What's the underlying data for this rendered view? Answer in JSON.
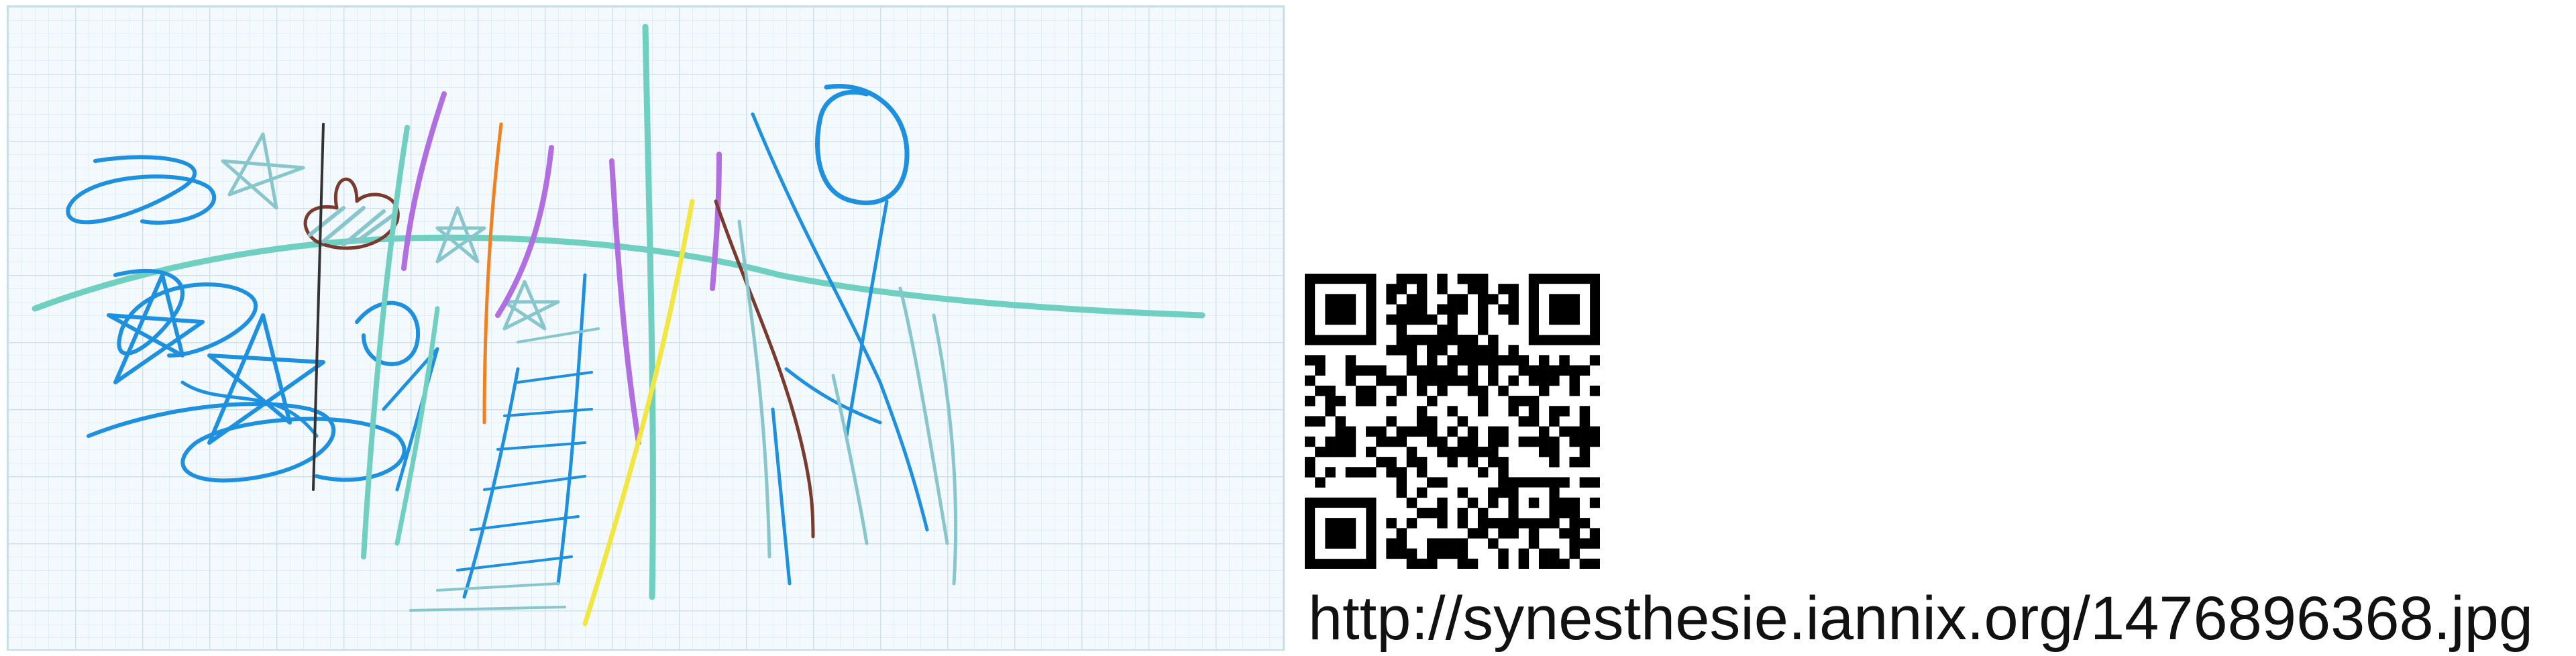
{
  "url": "http://synesthesie.iannix.org/1476896368.jpg",
  "colors": {
    "blue": "#1e90e0",
    "teal": "#6fcfc0",
    "light_teal": "#86c6cc",
    "purple": "#b06ee0",
    "orange": "#f08020",
    "brown": "#7a3b2e",
    "yellow": "#f2e640",
    "dark": "#333333",
    "grid": "#cfe2ea"
  },
  "icons": [
    "qr-code-icon"
  ]
}
